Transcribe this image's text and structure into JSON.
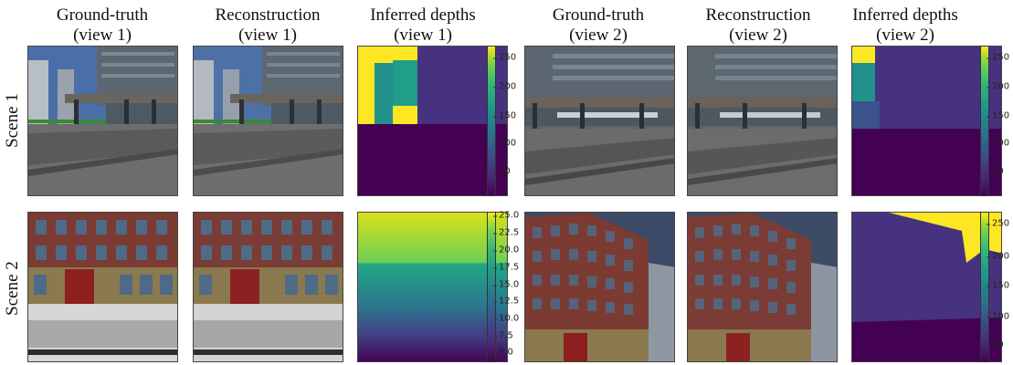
{
  "columns": [
    {
      "line1": "Ground-truth",
      "line2": "(view 1)"
    },
    {
      "line1": "Reconstruction",
      "line2": "(view 1)"
    },
    {
      "line1": "Inferred depths",
      "line2": "(view 1)"
    },
    {
      "line1": "Ground-truth",
      "line2": "(view 2)"
    },
    {
      "line1": "Reconstruction",
      "line2": "(view 2)"
    },
    {
      "line1": "Inferred depths",
      "line2": "(view 2)"
    }
  ],
  "rows": [
    {
      "label": "Scene 1"
    },
    {
      "label": "Scene 2"
    }
  ],
  "colorbars": {
    "scene1_view1": [
      "250",
      "200",
      "150",
      "100",
      "50"
    ],
    "scene1_view2": [
      "250",
      "200",
      "150",
      "100",
      "50"
    ],
    "scene2_view1": [
      "25.0",
      "22.5",
      "20.0",
      "17.5",
      "15.0",
      "12.5",
      "10.0",
      "7.5",
      "5.0"
    ],
    "scene2_view2": [
      "250",
      "200",
      "150",
      "100",
      "50"
    ]
  },
  "colors": {
    "sky": "#4a6fa8",
    "building_gray": "#5b6670",
    "road": "#6d6d6d",
    "brick": "#7b3b33",
    "door_red": "#8e1f1f",
    "viridis_low": "#440154",
    "viridis_high": "#fde725"
  }
}
